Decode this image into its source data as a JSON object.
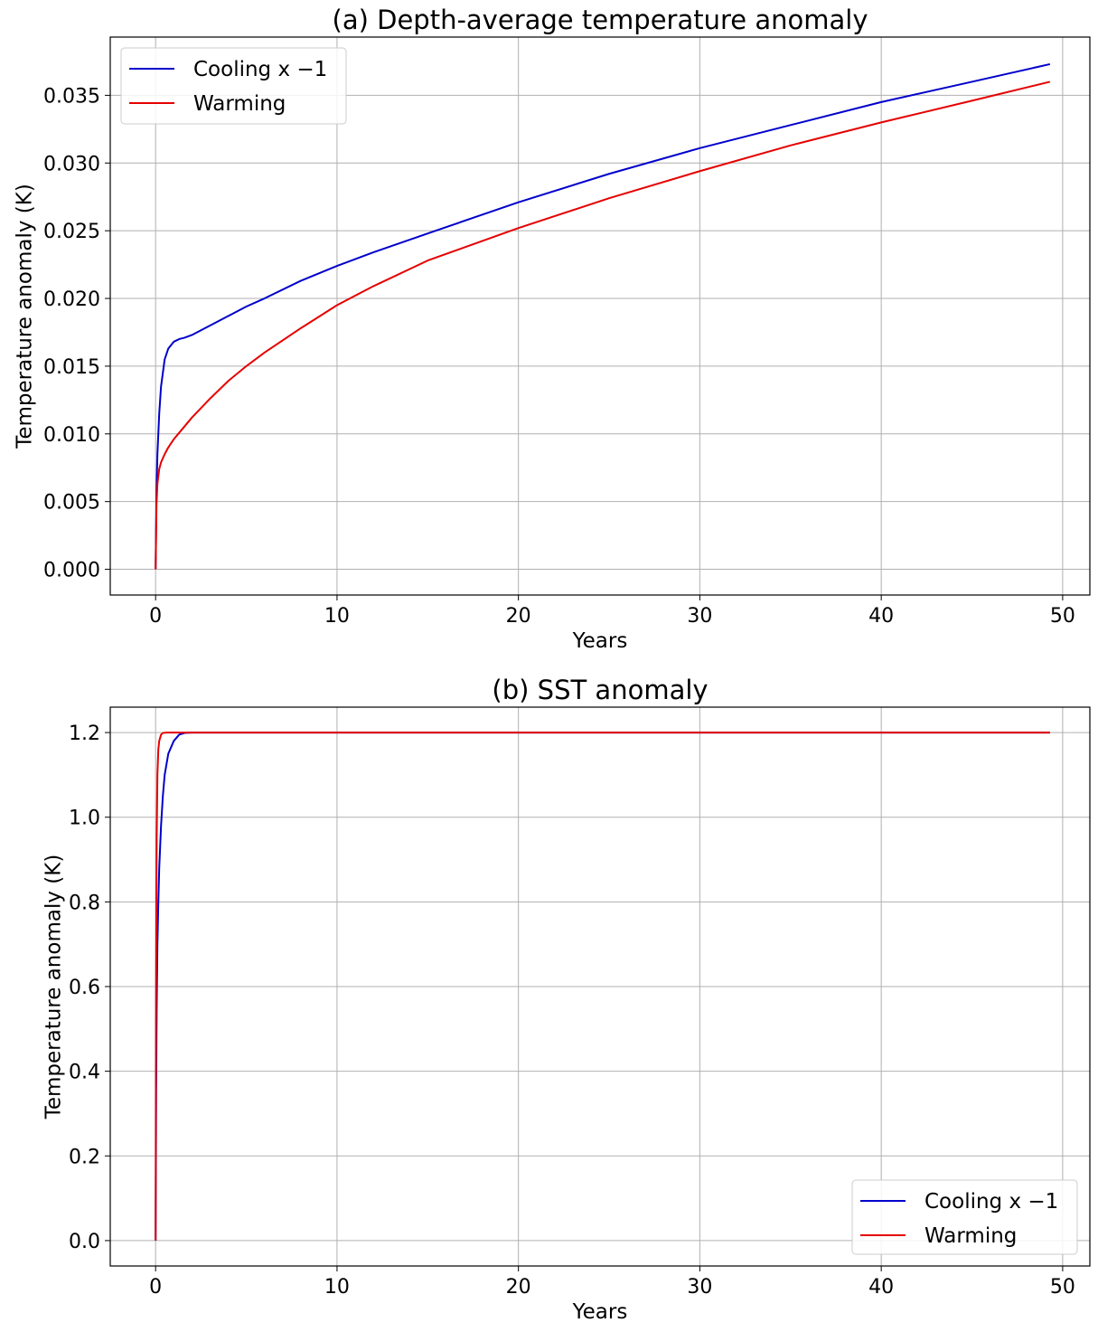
{
  "colors": {
    "cooling": "#0000cc",
    "warming": "#e60000",
    "grid": "#b0b0b0",
    "axes": "#000000",
    "legend_border": "#cccccc"
  },
  "chart_data": [
    {
      "id": "a",
      "type": "line",
      "title": "(a) Depth-average temperature anomaly",
      "xlabel": "Years",
      "ylabel": "Temperature anomaly (K)",
      "xlim": [
        -2.5,
        51.5
      ],
      "ylim": [
        -0.0019,
        0.0393
      ],
      "xticks": [
        0,
        10,
        20,
        30,
        40,
        50
      ],
      "xtick_labels": [
        "0",
        "10",
        "20",
        "30",
        "40",
        "50"
      ],
      "yticks": [
        0.0,
        0.005,
        0.01,
        0.015,
        0.02,
        0.025,
        0.03,
        0.035
      ],
      "ytick_labels": [
        "0.000",
        "0.005",
        "0.010",
        "0.015",
        "0.020",
        "0.025",
        "0.030",
        "0.035"
      ],
      "grid": true,
      "legend_position": "top-left",
      "series": [
        {
          "name": "Cooling x −1",
          "color_key": "cooling",
          "x": [
            0,
            0.05,
            0.1,
            0.2,
            0.3,
            0.5,
            0.7,
            1.0,
            1.3,
            1.6,
            2,
            3,
            4,
            5,
            6,
            8,
            10,
            12,
            15,
            20,
            25,
            30,
            35,
            40,
            45,
            49.3
          ],
          "y": [
            0,
            0.0058,
            0.0085,
            0.0115,
            0.0135,
            0.0155,
            0.0163,
            0.0168,
            0.017,
            0.0171,
            0.0173,
            0.018,
            0.0187,
            0.0194,
            0.02,
            0.0213,
            0.0224,
            0.0234,
            0.0248,
            0.0271,
            0.0292,
            0.0311,
            0.0328,
            0.0345,
            0.036,
            0.0373
          ]
        },
        {
          "name": "Warming",
          "color_key": "warming",
          "x": [
            0,
            0.05,
            0.1,
            0.2,
            0.3,
            0.5,
            0.7,
            1.0,
            1.5,
            2,
            3,
            4,
            5,
            6,
            8,
            10,
            12,
            15,
            20,
            25,
            30,
            35,
            40,
            45,
            49.3
          ],
          "y": [
            0,
            0.0048,
            0.0063,
            0.0074,
            0.0079,
            0.0085,
            0.009,
            0.0096,
            0.0104,
            0.0112,
            0.0126,
            0.0139,
            0.015,
            0.016,
            0.0178,
            0.0195,
            0.0209,
            0.0228,
            0.0252,
            0.0274,
            0.0294,
            0.0313,
            0.033,
            0.0346,
            0.036
          ]
        }
      ]
    },
    {
      "id": "b",
      "type": "line",
      "title": "(b) SST anomaly",
      "xlabel": "Years",
      "ylabel": "Temperature anomaly (K)",
      "xlim": [
        -2.5,
        51.5
      ],
      "ylim": [
        -0.06,
        1.26
      ],
      "xticks": [
        0,
        10,
        20,
        30,
        40,
        50
      ],
      "xtick_labels": [
        "0",
        "10",
        "20",
        "30",
        "40",
        "50"
      ],
      "yticks": [
        0.0,
        0.2,
        0.4,
        0.6,
        0.8,
        1.0,
        1.2
      ],
      "ytick_labels": [
        "0.0",
        "0.2",
        "0.4",
        "0.6",
        "0.8",
        "1.0",
        "1.2"
      ],
      "grid": true,
      "legend_position": "bottom-right",
      "series": [
        {
          "name": "Cooling x −1",
          "color_key": "cooling",
          "x": [
            0,
            0.03,
            0.06,
            0.1,
            0.15,
            0.2,
            0.3,
            0.4,
            0.5,
            0.7,
            1.0,
            1.3,
            1.6,
            2.0,
            3.0,
            49.3
          ],
          "y": [
            0,
            0.35,
            0.55,
            0.7,
            0.8,
            0.88,
            0.98,
            1.05,
            1.1,
            1.15,
            1.18,
            1.195,
            1.199,
            1.2,
            1.2,
            1.2
          ]
        },
        {
          "name": "Warming",
          "color_key": "warming",
          "x": [
            0,
            0.02,
            0.04,
            0.06,
            0.1,
            0.15,
            0.2,
            0.3,
            0.4,
            0.6,
            1.0,
            2.0,
            49.3
          ],
          "y": [
            0,
            0.5,
            0.8,
            0.95,
            1.1,
            1.16,
            1.18,
            1.195,
            1.199,
            1.2,
            1.2,
            1.2,
            1.2
          ]
        }
      ]
    }
  ]
}
